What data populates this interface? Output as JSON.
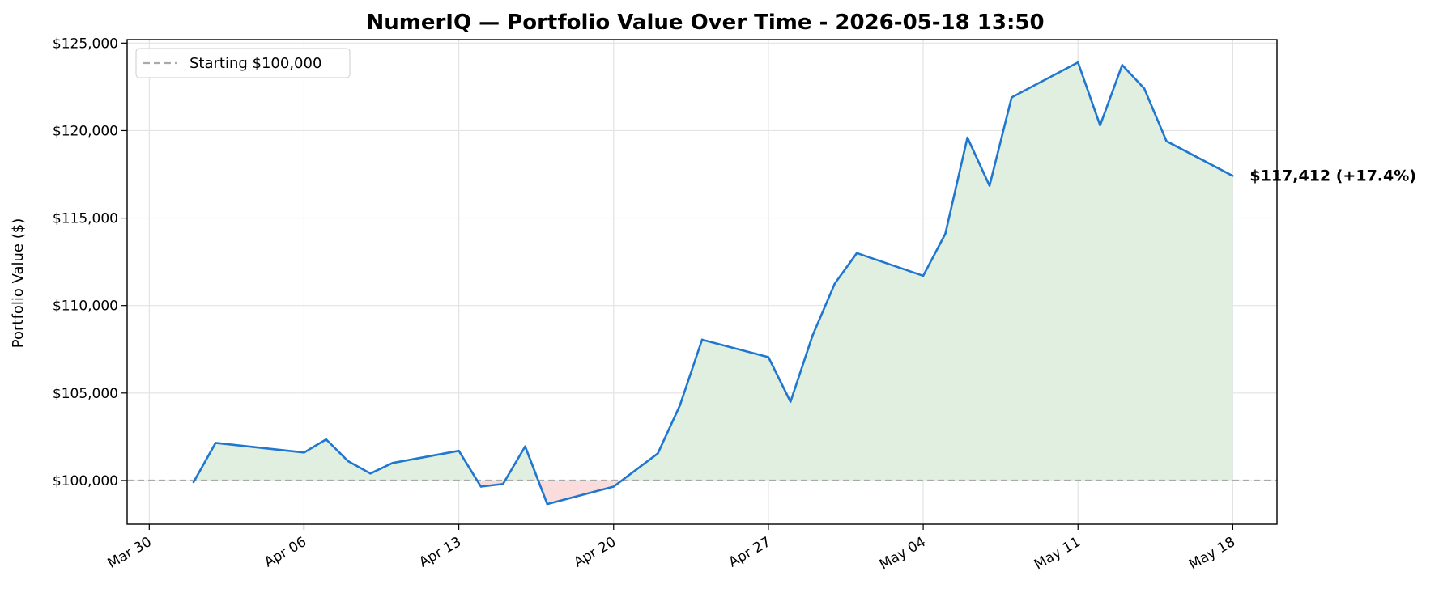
{
  "chart_data": {
    "type": "line",
    "title": "NumerIQ — Portfolio Value Over Time - 2026-05-18 13:50",
    "xlabel": "",
    "ylabel": "Portfolio Value ($)",
    "xlim": [
      "2026-03-29",
      "2026-05-20"
    ],
    "ylim": [
      97500,
      125200
    ],
    "x_ticks": [
      "2026-03-30",
      "2026-04-06",
      "2026-04-13",
      "2026-04-20",
      "2026-04-27",
      "2026-05-04",
      "2026-05-11",
      "2026-05-18"
    ],
    "x_tick_labels": [
      "Mar 30",
      "Apr 06",
      "Apr 13",
      "Apr 20",
      "Apr 27",
      "May 04",
      "May 11",
      "May 18"
    ],
    "y_ticks": [
      100000,
      105000,
      110000,
      115000,
      120000,
      125000
    ],
    "y_tick_labels": [
      "$100,000",
      "$105,000",
      "$110,000",
      "$115,000",
      "$120,000",
      "$125,000"
    ],
    "grid": true,
    "legend_position": "top-left",
    "baseline": {
      "value": 100000,
      "label": "Starting $100,000"
    },
    "end_annotation": "$117,412  (+17.4%)",
    "colors": {
      "line": "#1f77d0",
      "gain_fill": "#e0efe0",
      "loss_fill": "#fbdcdc",
      "baseline": "#aaaaaa"
    },
    "series": [
      {
        "x": [
          "2026-04-01",
          "2026-04-02",
          "2026-04-06",
          "2026-04-07",
          "2026-04-08",
          "2026-04-09",
          "2026-04-10",
          "2026-04-13",
          "2026-04-14",
          "2026-04-15",
          "2026-04-16",
          "2026-04-17",
          "2026-04-20",
          "2026-04-22",
          "2026-04-23",
          "2026-04-24",
          "2026-04-27",
          "2026-04-28",
          "2026-04-29",
          "2026-04-30",
          "2026-05-01",
          "2026-05-04",
          "2026-05-05",
          "2026-05-06",
          "2026-05-07",
          "2026-05-08",
          "2026-05-11",
          "2026-05-12",
          "2026-05-13",
          "2026-05-14",
          "2026-05-15",
          "2026-05-18"
        ],
        "values": [
          99900,
          102150,
          101600,
          102350,
          101100,
          100400,
          101000,
          101700,
          99650,
          99800,
          101950,
          98650,
          99650,
          101550,
          104300,
          108050,
          107050,
          104500,
          108300,
          111250,
          113000,
          111700,
          114100,
          119600,
          116850,
          121900,
          123900,
          120300,
          123750,
          122400,
          119400,
          117412
        ]
      }
    ]
  }
}
